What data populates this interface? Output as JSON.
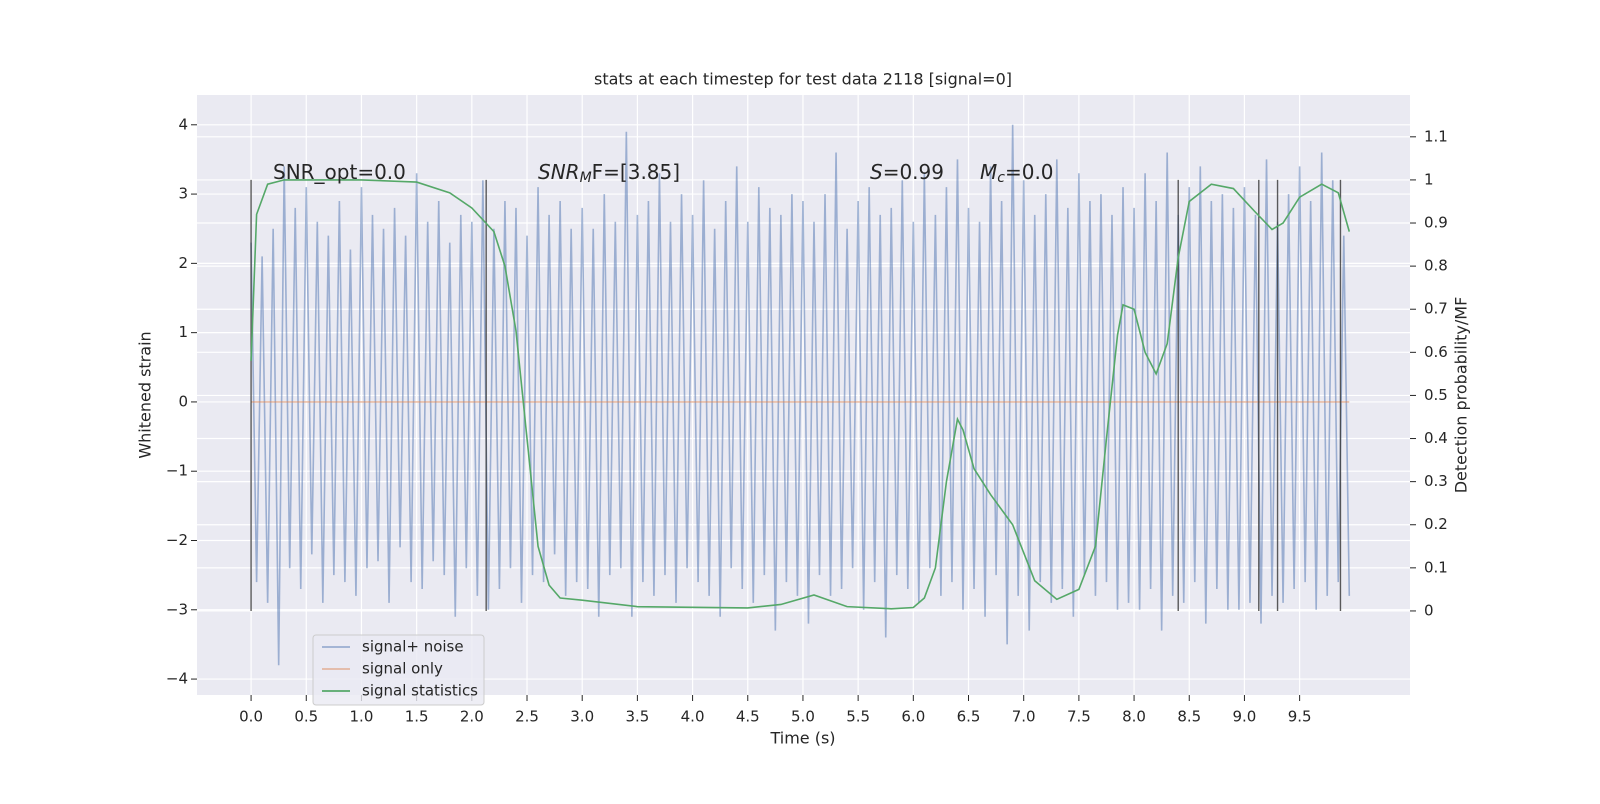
{
  "chart_data": {
    "type": "line",
    "title": "stats at each timestep for test data 2118 [signal=0]",
    "xlabel": "Time (s)",
    "ylabel": "Whitened strain",
    "y2label": "Detection probability/MF",
    "xlim": [
      -0.49,
      10.5
    ],
    "ylim": [
      -4.23,
      4.43
    ],
    "y2lim": [
      -0.195,
      1.197
    ],
    "xticks": [
      0.0,
      0.5,
      1.0,
      1.5,
      2.0,
      2.5,
      3.0,
      3.5,
      4.0,
      4.5,
      5.0,
      5.5,
      6.0,
      6.5,
      7.0,
      7.5,
      8.0,
      8.5,
      9.0,
      9.5
    ],
    "yticks": [
      {
        "value": -4,
        "label": "−4"
      },
      {
        "value": -3,
        "label": "−3"
      },
      {
        "value": -2,
        "label": "−2"
      },
      {
        "value": -1,
        "label": "−1"
      },
      0,
      1,
      2,
      3,
      4
    ],
    "y2ticks": [
      0.0,
      0.1,
      0.2,
      0.3,
      0.4,
      0.5,
      0.6,
      0.7,
      0.8,
      0.9,
      1.0,
      1.1
    ],
    "grid": true,
    "legend": "lower left",
    "annotations": [
      [
        {
          "text": "SNR_opt=0.0",
          "italic": false
        }
      ],
      [
        {
          "text": "SNR",
          "italic": true
        },
        {
          "text": "M",
          "italic": true,
          "sub": true
        },
        {
          "text": "F=[3.85]",
          "italic": false
        }
      ],
      [
        {
          "text": "S",
          "italic": true
        },
        {
          "text": "=0.99",
          "italic": false
        }
      ],
      [
        {
          "text": "M",
          "italic": true
        },
        {
          "text": "c",
          "italic": true,
          "sub": true
        },
        {
          "text": "=0.0",
          "italic": false
        }
      ]
    ],
    "event_lines": {
      "x": [
        0.0,
        2.13,
        8.4,
        9.13,
        9.3,
        9.87
      ],
      "ymin": 0.0,
      "ymax": 1.0,
      "color": "#333333"
    },
    "series": [
      {
        "name": "signal+ noise",
        "color": "#4c72b0",
        "alpha": 0.5,
        "x": [
          0,
          0.05,
          0.1,
          0.15,
          0.2,
          0.25,
          0.3,
          0.35,
          0.4,
          0.45,
          0.5,
          0.55,
          0.6,
          0.65,
          0.7,
          0.75,
          0.8,
          0.85,
          0.9,
          0.95,
          1,
          1.05,
          1.1,
          1.15,
          1.2,
          1.25,
          1.3,
          1.35,
          1.4,
          1.45,
          1.5,
          1.55,
          1.6,
          1.65,
          1.7,
          1.75,
          1.8,
          1.85,
          1.9,
          1.95,
          2,
          2.05,
          2.1,
          2.15,
          2.2,
          2.25,
          2.3,
          2.35,
          2.4,
          2.45,
          2.5,
          2.55,
          2.6,
          2.65,
          2.7,
          2.75,
          2.8,
          2.85,
          2.9,
          2.95,
          3,
          3.05,
          3.1,
          3.15,
          3.2,
          3.25,
          3.3,
          3.35,
          3.4,
          3.45,
          3.5,
          3.55,
          3.6,
          3.65,
          3.7,
          3.75,
          3.8,
          3.85,
          3.9,
          3.95,
          4,
          4.05,
          4.1,
          4.15,
          4.2,
          4.25,
          4.3,
          4.35,
          4.4,
          4.45,
          4.5,
          4.55,
          4.6,
          4.65,
          4.7,
          4.75,
          4.8,
          4.85,
          4.9,
          4.95,
          5,
          5.05,
          5.1,
          5.15,
          5.2,
          5.25,
          5.3,
          5.35,
          5.4,
          5.45,
          5.5,
          5.55,
          5.6,
          5.65,
          5.7,
          5.75,
          5.8,
          5.85,
          5.9,
          5.95,
          6,
          6.05,
          6.1,
          6.15,
          6.2,
          6.25,
          6.3,
          6.35,
          6.4,
          6.45,
          6.5,
          6.55,
          6.6,
          6.65,
          6.7,
          6.75,
          6.8,
          6.85,
          6.9,
          6.95,
          7,
          7.05,
          7.1,
          7.15,
          7.2,
          7.25,
          7.3,
          7.35,
          7.4,
          7.45,
          7.5,
          7.55,
          7.6,
          7.65,
          7.7,
          7.75,
          7.8,
          7.85,
          7.9,
          7.95,
          8,
          8.05,
          8.1,
          8.15,
          8.2,
          8.25,
          8.3,
          8.35,
          8.4,
          8.45,
          8.5,
          8.55,
          8.6,
          8.65,
          8.7,
          8.75,
          8.8,
          8.85,
          8.9,
          8.95,
          9,
          9.05,
          9.1,
          9.15,
          9.2,
          9.25,
          9.3,
          9.35,
          9.4,
          9.45,
          9.5,
          9.55,
          9.6,
          9.65,
          9.7,
          9.75,
          9.8,
          9.85,
          9.9,
          9.95
        ],
        "values": [
          2.3,
          -2.6,
          2.1,
          -2.9,
          2.5,
          -3.8,
          3.4,
          -2.4,
          2.8,
          -2.7,
          3.1,
          -2.2,
          2.6,
          -2.9,
          2.4,
          -2.5,
          2.9,
          -2.6,
          2.2,
          -2.8,
          3.1,
          -2.4,
          2.7,
          -2.3,
          2.5,
          -2.9,
          2.8,
          -2.1,
          2.4,
          -2.6,
          3.3,
          -2.7,
          2.6,
          -2.3,
          2.9,
          -2.5,
          2.3,
          -3.1,
          2.7,
          -2.4,
          2.6,
          -2.8,
          3.2,
          -3.0,
          2.5,
          -2.7,
          2.9,
          -2.4,
          2.8,
          -2.9,
          2.4,
          -2.5,
          3.1,
          -2.6,
          2.7,
          -2.2,
          2.9,
          -2.8,
          2.5,
          -2.6,
          2.8,
          -2.7,
          2.5,
          -3.1,
          3.0,
          -2.5,
          2.6,
          -2.4,
          3.9,
          -3.1,
          2.7,
          -2.6,
          2.9,
          -2.8,
          3.3,
          -2.5,
          2.6,
          -2.9,
          3.0,
          -2.4,
          2.7,
          -2.6,
          3.2,
          -2.8,
          2.5,
          -3.1,
          2.9,
          -2.4,
          3.4,
          -2.7,
          2.6,
          -2.9,
          3.1,
          -2.5,
          2.8,
          -3.3,
          2.7,
          -2.6,
          3.0,
          -2.8,
          2.9,
          -3.2,
          2.6,
          -2.5,
          3.0,
          -2.8,
          3.6,
          -2.7,
          2.5,
          -2.4,
          2.9,
          -3.0,
          3.1,
          -2.6,
          2.7,
          -3.4,
          2.8,
          -2.5,
          3.2,
          -2.7,
          2.6,
          -2.9,
          3.3,
          -2.4,
          2.7,
          -2.8,
          3.1,
          -2.6,
          3.5,
          -3.0,
          2.8,
          -2.7,
          2.6,
          -3.1,
          3.4,
          -2.5,
          2.9,
          -3.5,
          4.0,
          -2.8,
          3.2,
          -3.3,
          2.7,
          -2.6,
          3.0,
          -2.9,
          3.5,
          -2.7,
          2.8,
          -3.1,
          3.3,
          -2.5,
          2.9,
          -2.8,
          3.0,
          -2.6,
          2.7,
          -3.0,
          3.1,
          -2.9,
          2.8,
          -3.0,
          3.3,
          -2.7,
          2.9,
          -3.3,
          3.6,
          -2.8,
          2.7,
          -2.9,
          3.1,
          -2.6,
          3.4,
          -3.2,
          2.9,
          -2.7,
          3.0,
          -3.0,
          2.8,
          -3.0,
          3.1,
          -2.9,
          2.7,
          -3.2,
          3.5,
          -2.8,
          2.6,
          -2.9,
          3.0,
          -2.7,
          3.4,
          -2.6,
          2.9,
          -3.0,
          3.6,
          -2.8,
          3.2,
          -2.6,
          2.4,
          -2.8
        ]
      },
      {
        "name": "signal only",
        "color": "#dd8452",
        "alpha": 0.5,
        "x": [
          0,
          9.95
        ],
        "values": [
          0,
          0
        ]
      },
      {
        "name": "signal statistics",
        "color": "#55a868",
        "alpha": 1,
        "axis": "y2",
        "x": [
          0.0,
          0.05,
          0.15,
          0.3,
          1.0,
          1.5,
          1.8,
          2.0,
          2.2,
          2.3,
          2.4,
          2.5,
          2.6,
          2.7,
          2.8,
          3.0,
          3.5,
          4.5,
          4.8,
          5.1,
          5.4,
          5.8,
          6.0,
          6.1,
          6.2,
          6.3,
          6.4,
          6.45,
          6.55,
          6.7,
          6.9,
          7.1,
          7.3,
          7.5,
          7.65,
          7.75,
          7.85,
          7.9,
          8.0,
          8.1,
          8.2,
          8.3,
          8.4,
          8.5,
          8.7,
          8.9,
          9.1,
          9.25,
          9.35,
          9.5,
          9.7,
          9.85,
          9.95
        ],
        "values": [
          0.58,
          0.92,
          0.99,
          1.0,
          1.0,
          0.995,
          0.97,
          0.935,
          0.88,
          0.8,
          0.65,
          0.4,
          0.15,
          0.06,
          0.03,
          0.025,
          0.01,
          0.007,
          0.015,
          0.037,
          0.01,
          0.005,
          0.008,
          0.03,
          0.1,
          0.3,
          0.445,
          0.42,
          0.33,
          0.27,
          0.2,
          0.07,
          0.027,
          0.05,
          0.15,
          0.4,
          0.64,
          0.71,
          0.7,
          0.6,
          0.55,
          0.62,
          0.82,
          0.95,
          0.99,
          0.98,
          0.925,
          0.885,
          0.9,
          0.96,
          0.99,
          0.97,
          0.88
        ]
      }
    ]
  }
}
